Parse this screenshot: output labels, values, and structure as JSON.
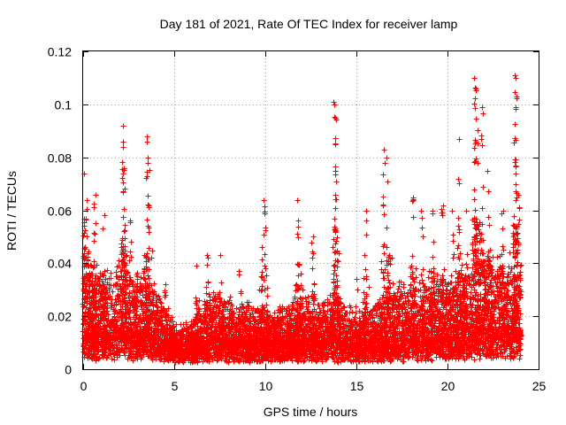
{
  "chart_data": {
    "type": "scatter",
    "title": "Day 181 of 2021, Rate Of TEC Index for receiver lamp",
    "xlabel": "GPS time / hours",
    "ylabel": "ROTI / TECUs",
    "xlim": [
      0,
      25
    ],
    "ylim": [
      0,
      0.12
    ],
    "xticks": [
      0,
      5,
      10,
      15,
      20,
      25
    ],
    "xtick_labels": [
      "0",
      "5",
      "10",
      "15",
      "20",
      "25"
    ],
    "yticks": [
      0,
      0.02,
      0.04,
      0.06,
      0.08,
      0.1,
      0.12
    ],
    "ytick_labels": [
      "0",
      "0.02",
      "0.04",
      "0.06",
      "0.08",
      "0.1",
      "0.12"
    ],
    "grid": true,
    "marker": "+",
    "color": "#ff0000",
    "series": [
      {
        "name": "ROTI",
        "envelope": {
          "x": [
            0.0,
            0.3,
            0.6,
            1.0,
            1.5,
            2.0,
            2.2,
            2.5,
            3.0,
            3.5,
            4.0,
            4.5,
            5.0,
            5.5,
            6.0,
            6.5,
            7.0,
            7.5,
            8.0,
            8.5,
            9.0,
            9.5,
            10.0,
            10.5,
            11.0,
            11.5,
            12.0,
            12.5,
            13.0,
            13.5,
            14.0,
            14.5,
            15.0,
            15.5,
            16.0,
            16.5,
            17.0,
            17.5,
            18.0,
            18.5,
            19.0,
            19.5,
            20.0,
            20.5,
            21.0,
            21.5,
            22.0,
            22.5,
            23.0,
            23.5,
            24.0
          ],
          "base": [
            0.01,
            0.012,
            0.011,
            0.012,
            0.011,
            0.012,
            0.012,
            0.011,
            0.011,
            0.012,
            0.01,
            0.009,
            0.008,
            0.008,
            0.008,
            0.009,
            0.009,
            0.01,
            0.009,
            0.009,
            0.008,
            0.009,
            0.009,
            0.009,
            0.009,
            0.009,
            0.009,
            0.01,
            0.009,
            0.01,
            0.009,
            0.009,
            0.008,
            0.009,
            0.009,
            0.009,
            0.009,
            0.009,
            0.01,
            0.01,
            0.01,
            0.01,
            0.01,
            0.011,
            0.011,
            0.012,
            0.013,
            0.013,
            0.013,
            0.013,
            0.013
          ],
          "upper": [
            0.045,
            0.038,
            0.03,
            0.035,
            0.03,
            0.035,
            0.04,
            0.03,
            0.03,
            0.032,
            0.025,
            0.02,
            0.013,
            0.012,
            0.014,
            0.02,
            0.024,
            0.022,
            0.022,
            0.02,
            0.022,
            0.02,
            0.018,
            0.018,
            0.02,
            0.022,
            0.025,
            0.024,
            0.02,
            0.022,
            0.028,
            0.02,
            0.015,
            0.018,
            0.022,
            0.025,
            0.028,
            0.03,
            0.03,
            0.03,
            0.033,
            0.03,
            0.028,
            0.03,
            0.035,
            0.038,
            0.04,
            0.04,
            0.038,
            0.035,
            0.03
          ]
        },
        "count": 8000,
        "spikes": [
          {
            "x": 0.05,
            "ymax": 0.074,
            "n": 10
          },
          {
            "x": 0.2,
            "ymax": 0.064,
            "n": 10
          },
          {
            "x": 0.6,
            "ymax": 0.066,
            "n": 8
          },
          {
            "x": 1.1,
            "ymax": 0.058,
            "n": 6
          },
          {
            "x": 2.2,
            "ymax": 0.092,
            "n": 14
          },
          {
            "x": 2.25,
            "ymax": 0.086,
            "n": 12
          },
          {
            "x": 2.6,
            "ymax": 0.056,
            "n": 8
          },
          {
            "x": 3.5,
            "ymax": 0.088,
            "n": 12
          },
          {
            "x": 3.6,
            "ymax": 0.078,
            "n": 10
          },
          {
            "x": 4.5,
            "ymax": 0.032,
            "n": 6
          },
          {
            "x": 6.2,
            "ymax": 0.039,
            "n": 6
          },
          {
            "x": 6.8,
            "ymax": 0.043,
            "n": 8
          },
          {
            "x": 7.5,
            "ymax": 0.043,
            "n": 6
          },
          {
            "x": 8.6,
            "ymax": 0.037,
            "n": 6
          },
          {
            "x": 9.8,
            "ymax": 0.046,
            "n": 6
          },
          {
            "x": 9.95,
            "ymax": 0.064,
            "n": 10
          },
          {
            "x": 11.8,
            "ymax": 0.064,
            "n": 10
          },
          {
            "x": 12.6,
            "ymax": 0.05,
            "n": 8
          },
          {
            "x": 13.8,
            "ymax": 0.101,
            "n": 14
          },
          {
            "x": 13.85,
            "ymax": 0.095,
            "n": 12
          },
          {
            "x": 15.0,
            "ymax": 0.034,
            "n": 6
          },
          {
            "x": 15.5,
            "ymax": 0.06,
            "n": 8
          },
          {
            "x": 16.5,
            "ymax": 0.083,
            "n": 10
          },
          {
            "x": 16.7,
            "ymax": 0.08,
            "n": 10
          },
          {
            "x": 17.0,
            "ymax": 0.042,
            "n": 6
          },
          {
            "x": 18.1,
            "ymax": 0.065,
            "n": 10
          },
          {
            "x": 18.6,
            "ymax": 0.06,
            "n": 8
          },
          {
            "x": 19.2,
            "ymax": 0.06,
            "n": 8
          },
          {
            "x": 19.7,
            "ymax": 0.062,
            "n": 8
          },
          {
            "x": 20.3,
            "ymax": 0.06,
            "n": 8
          },
          {
            "x": 20.6,
            "ymax": 0.087,
            "n": 10
          },
          {
            "x": 21.0,
            "ymax": 0.06,
            "n": 8
          },
          {
            "x": 21.5,
            "ymax": 0.11,
            "n": 16
          },
          {
            "x": 21.6,
            "ymax": 0.106,
            "n": 14
          },
          {
            "x": 21.9,
            "ymax": 0.099,
            "n": 12
          },
          {
            "x": 22.2,
            "ymax": 0.075,
            "n": 10
          },
          {
            "x": 23.0,
            "ymax": 0.06,
            "n": 8
          },
          {
            "x": 23.7,
            "ymax": 0.111,
            "n": 16
          },
          {
            "x": 23.75,
            "ymax": 0.103,
            "n": 14
          },
          {
            "x": 23.9,
            "ymax": 0.066,
            "n": 10
          }
        ]
      }
    ]
  }
}
